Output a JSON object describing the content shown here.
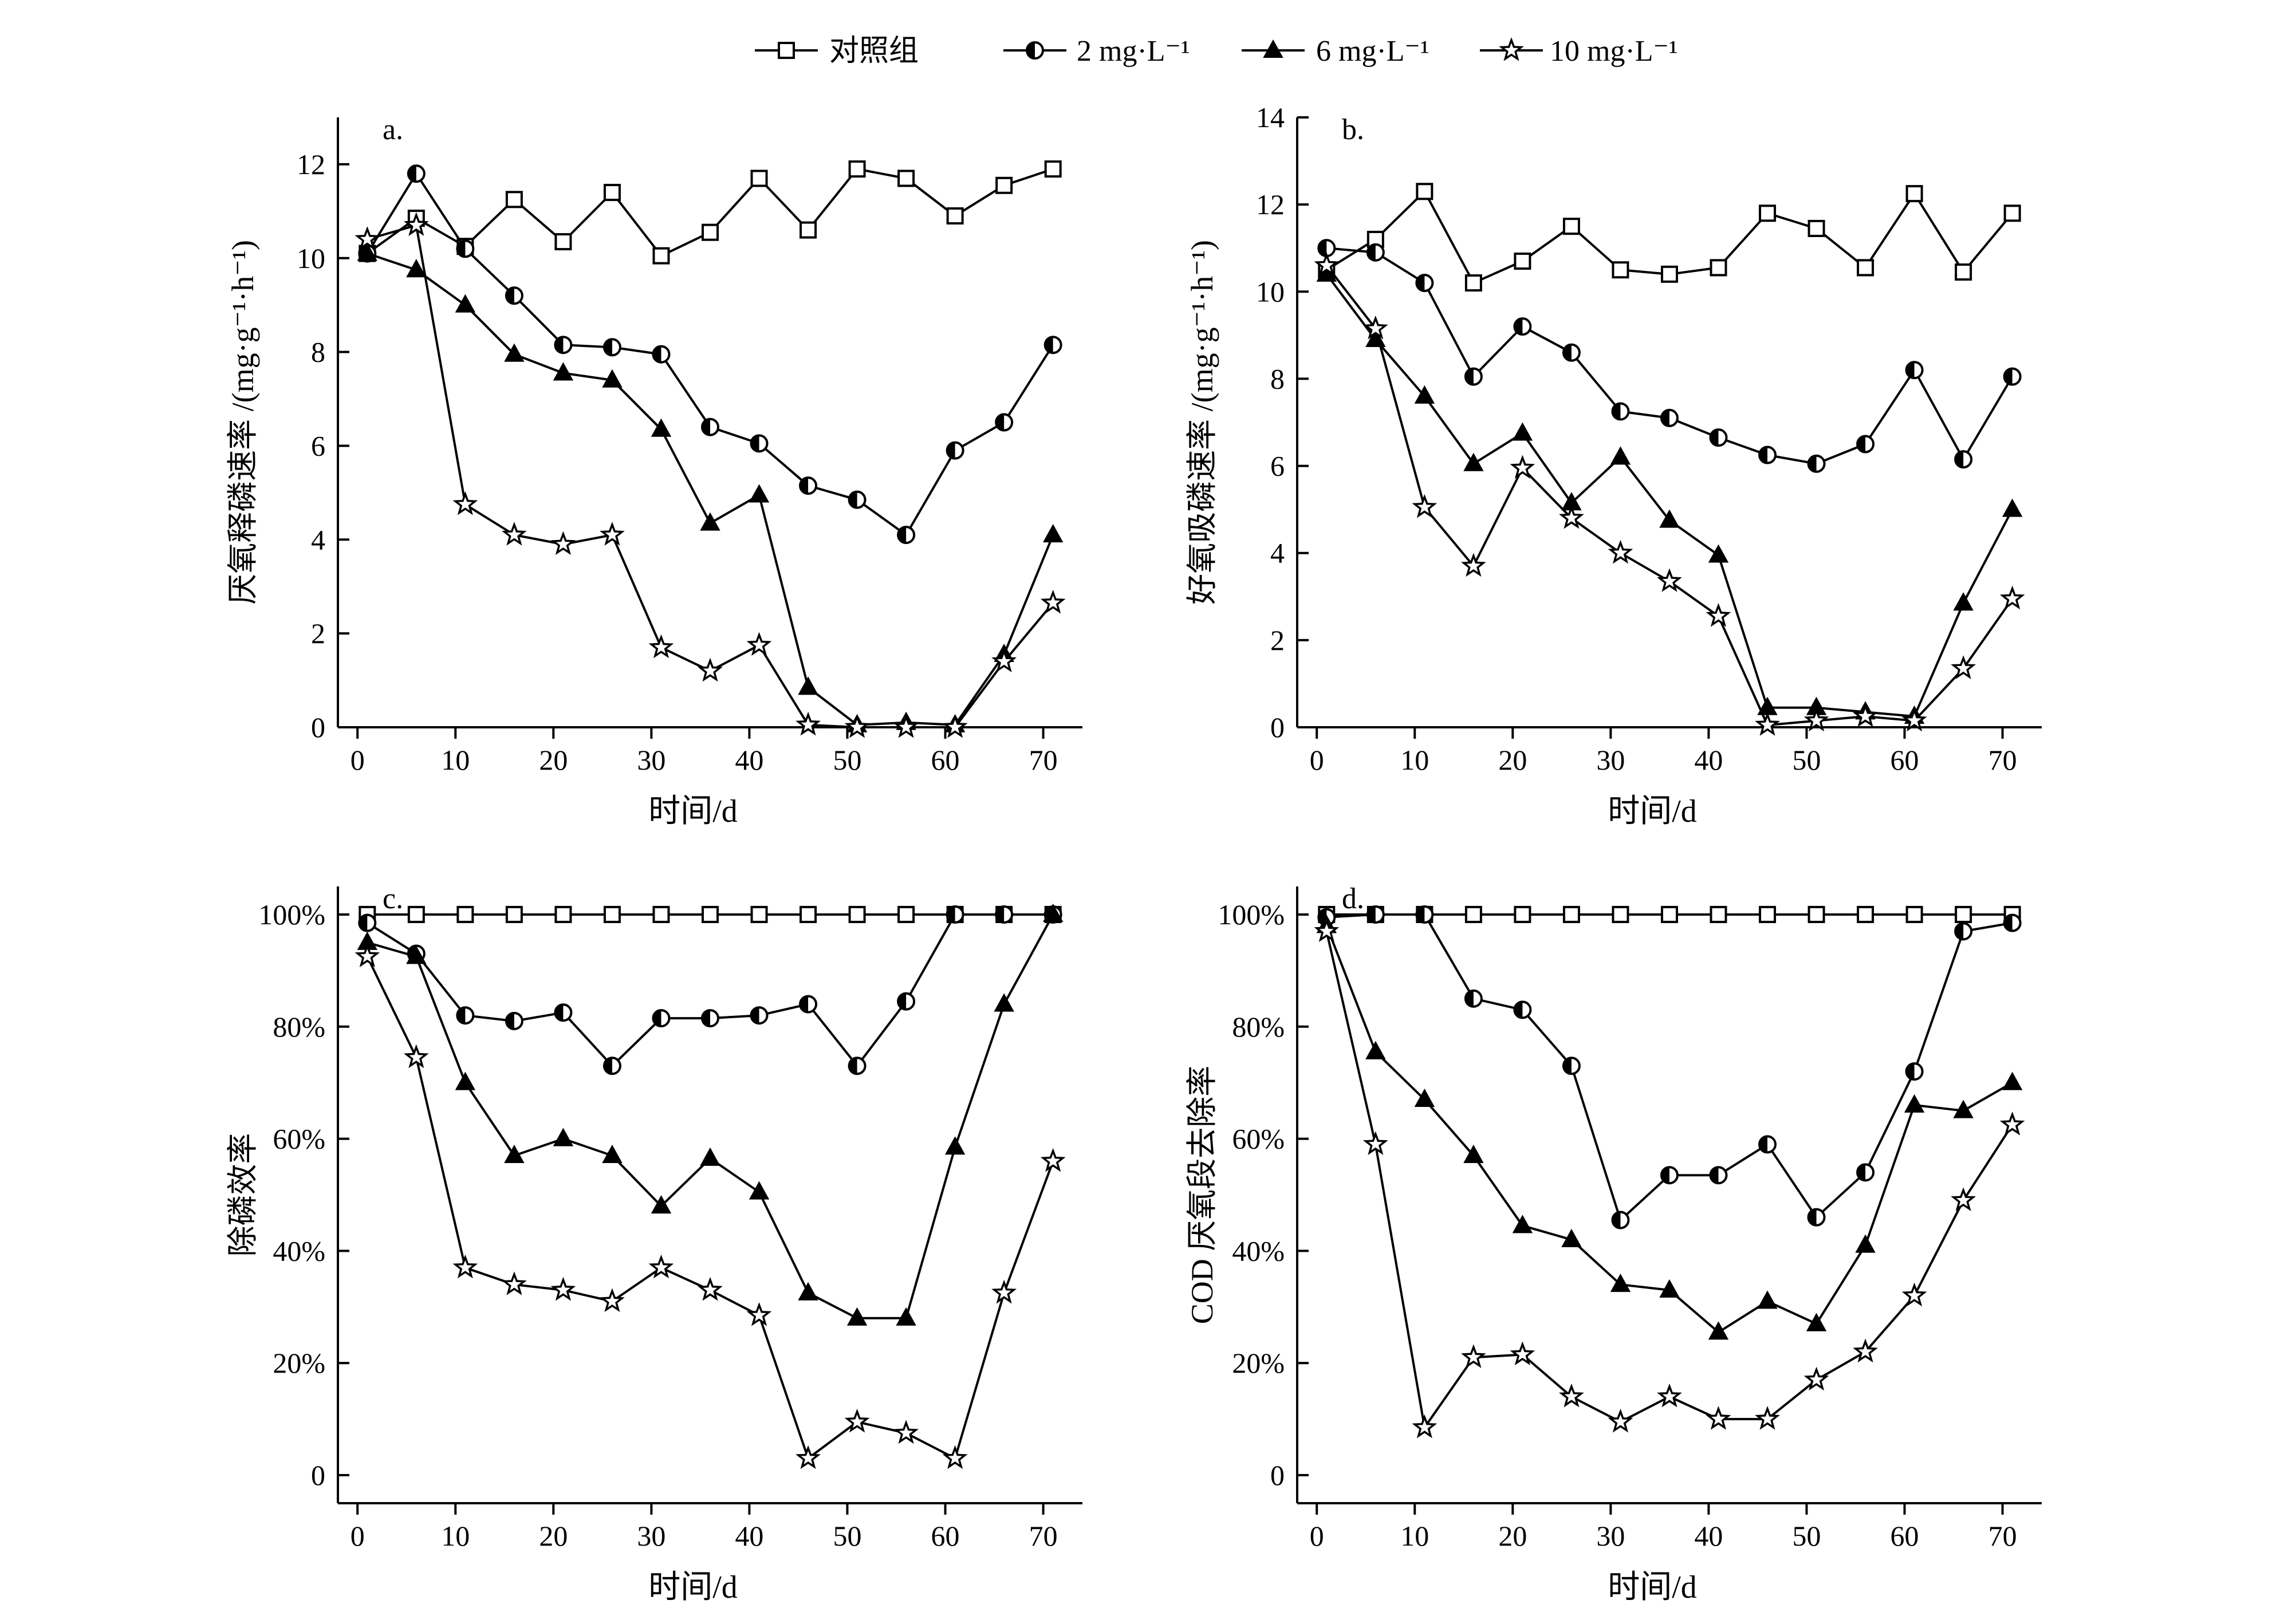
{
  "legend": [
    {
      "label": "对照组",
      "marker": "square"
    },
    {
      "label": "2 mg·L⁻¹",
      "marker": "halfcircle"
    },
    {
      "label": "6 mg·L⁻¹",
      "marker": "triangle"
    },
    {
      "label": "10 mg·L⁻¹",
      "marker": "star"
    }
  ],
  "colors": {
    "line": "#000000",
    "background": "#ffffff"
  },
  "chart_data": [
    {
      "type": "line",
      "title": "a.",
      "xlabel": "时间/d",
      "ylabel": "厌氧释磷速率 /(mg·g⁻¹·h⁻¹)",
      "xlim": [
        -2,
        74
      ],
      "ylim": [
        0,
        13
      ],
      "xticks": [
        0,
        10,
        20,
        30,
        40,
        50,
        60,
        70
      ],
      "yticks": [
        0,
        2,
        4,
        6,
        8,
        10,
        12
      ],
      "ytick_labels": [
        "0",
        "2",
        "4",
        "6",
        "8",
        "10",
        "12"
      ],
      "x": [
        1,
        6,
        11,
        16,
        21,
        26,
        31,
        36,
        41,
        46,
        51,
        56,
        61,
        66,
        71
      ],
      "series": [
        {
          "name": "对照组",
          "marker": "square",
          "values": [
            10.1,
            10.85,
            10.25,
            11.25,
            10.35,
            11.4,
            10.05,
            10.55,
            11.7,
            10.6,
            11.9,
            11.7,
            10.9,
            11.55,
            11.9
          ]
        },
        {
          "name": "2 mg·L⁻¹",
          "marker": "halfcircle",
          "values": [
            10.1,
            11.8,
            10.2,
            9.2,
            8.15,
            8.1,
            7.95,
            6.4,
            6.05,
            5.15,
            4.85,
            4.1,
            5.9,
            6.5,
            8.15
          ]
        },
        {
          "name": "6 mg·L⁻¹",
          "marker": "triangle",
          "values": [
            10.1,
            9.75,
            9.0,
            7.95,
            7.55,
            7.4,
            6.35,
            4.35,
            4.95,
            0.85,
            0.05,
            0.1,
            0.05,
            1.55,
            4.1
          ]
        },
        {
          "name": "10 mg·L⁻¹",
          "marker": "star",
          "values": [
            10.4,
            10.7,
            4.75,
            4.1,
            3.9,
            4.1,
            1.7,
            1.2,
            1.75,
            0.05,
            0.0,
            0.0,
            0.0,
            1.4,
            2.65
          ]
        }
      ]
    },
    {
      "type": "line",
      "title": "b.",
      "xlabel": "时间/d",
      "ylabel": "好氧吸磷速率 /(mg·g⁻¹·h⁻¹)",
      "xlim": [
        -2,
        74
      ],
      "ylim": [
        0,
        14
      ],
      "xticks": [
        0,
        10,
        20,
        30,
        40,
        50,
        60,
        70
      ],
      "yticks": [
        0,
        2,
        4,
        6,
        8,
        10,
        12,
        14
      ],
      "ytick_labels": [
        "0",
        "2",
        "4",
        "6",
        "8",
        "10",
        "12",
        "14"
      ],
      "x": [
        1,
        6,
        11,
        16,
        21,
        26,
        31,
        36,
        41,
        46,
        51,
        56,
        61,
        66,
        71
      ],
      "series": [
        {
          "name": "对照组",
          "marker": "square",
          "values": [
            10.5,
            11.2,
            12.3,
            10.2,
            10.7,
            11.5,
            10.5,
            10.4,
            10.55,
            11.8,
            11.45,
            10.55,
            12.25,
            10.45,
            11.8
          ]
        },
        {
          "name": "2 mg·L⁻¹",
          "marker": "halfcircle",
          "values": [
            11.0,
            10.9,
            10.2,
            8.05,
            9.2,
            8.6,
            7.25,
            7.1,
            6.65,
            6.25,
            6.05,
            6.5,
            8.2,
            6.15,
            8.05
          ]
        },
        {
          "name": "6 mg·L⁻¹",
          "marker": "triangle",
          "values": [
            10.4,
            8.9,
            7.6,
            6.05,
            6.75,
            5.15,
            6.2,
            4.75,
            3.95,
            0.45,
            0.45,
            0.35,
            0.25,
            2.85,
            5.0
          ]
        },
        {
          "name": "10 mg·L⁻¹",
          "marker": "star",
          "values": [
            10.6,
            9.15,
            5.05,
            3.7,
            5.95,
            4.8,
            4.0,
            3.35,
            2.55,
            0.05,
            0.15,
            0.25,
            0.15,
            1.35,
            2.95
          ]
        }
      ]
    },
    {
      "type": "line",
      "title": "c.",
      "xlabel": "时间/d",
      "ylabel": "除磷效率",
      "xlim": [
        -2,
        74
      ],
      "ylim": [
        -5,
        105
      ],
      "xticks": [
        0,
        10,
        20,
        30,
        40,
        50,
        60,
        70
      ],
      "yticks": [
        0,
        20,
        40,
        60,
        80,
        100
      ],
      "ytick_labels": [
        "0",
        "20%",
        "40%",
        "60%",
        "80%",
        "100%"
      ],
      "x": [
        1,
        6,
        11,
        16,
        21,
        26,
        31,
        36,
        41,
        46,
        51,
        56,
        61,
        66,
        71
      ],
      "series": [
        {
          "name": "对照组",
          "marker": "square",
          "values": [
            100,
            100,
            100,
            100,
            100,
            100,
            100,
            100,
            100,
            100,
            100,
            100,
            100,
            100,
            100
          ]
        },
        {
          "name": "2 mg·L⁻¹",
          "marker": "halfcircle",
          "values": [
            98.5,
            93,
            82,
            81,
            82.5,
            73,
            81.5,
            81.5,
            82,
            84,
            73,
            84.5,
            100,
            100,
            100
          ]
        },
        {
          "name": "6 mg·L⁻¹",
          "marker": "triangle",
          "values": [
            95,
            92.5,
            70,
            57,
            60,
            57,
            48,
            56.5,
            50.5,
            32.5,
            28,
            28,
            58.5,
            84,
            100
          ]
        },
        {
          "name": "10 mg·L⁻¹",
          "marker": "star",
          "values": [
            92.5,
            74.5,
            37,
            34,
            33,
            31,
            37,
            33,
            28.5,
            3,
            9.5,
            7.5,
            3,
            32.5,
            56
          ]
        }
      ]
    },
    {
      "type": "line",
      "title": "d.",
      "xlabel": "时间/d",
      "ylabel": "COD 厌氧段去除率",
      "xlim": [
        -2,
        74
      ],
      "ylim": [
        -5,
        105
      ],
      "xticks": [
        0,
        10,
        20,
        30,
        40,
        50,
        60,
        70
      ],
      "yticks": [
        0,
        20,
        40,
        60,
        80,
        100
      ],
      "ytick_labels": [
        "0",
        "20%",
        "40%",
        "60%",
        "80%",
        "100%"
      ],
      "x": [
        1,
        6,
        11,
        16,
        21,
        26,
        31,
        36,
        41,
        46,
        51,
        56,
        61,
        66,
        71
      ],
      "series": [
        {
          "name": "对照组",
          "marker": "square",
          "values": [
            100,
            100,
            100,
            100,
            100,
            100,
            100,
            100,
            100,
            100,
            100,
            100,
            100,
            100,
            100
          ]
        },
        {
          "name": "2 mg·L⁻¹",
          "marker": "halfcircle",
          "values": [
            99.5,
            100,
            100,
            85,
            83,
            73,
            45.5,
            53.5,
            53.5,
            59,
            46,
            54,
            72,
            97,
            98.5
          ]
        },
        {
          "name": "6 mg·L⁻¹",
          "marker": "triangle",
          "values": [
            98,
            75.5,
            67,
            57,
            44.5,
            42,
            34,
            33,
            25.5,
            31,
            27,
            41,
            66,
            65,
            70
          ]
        },
        {
          "name": "10 mg·L⁻¹",
          "marker": "star",
          "values": [
            97,
            59,
            8.5,
            21,
            21.5,
            14,
            9.5,
            14,
            10,
            10,
            17,
            22,
            32,
            49,
            62.5
          ]
        }
      ]
    }
  ]
}
